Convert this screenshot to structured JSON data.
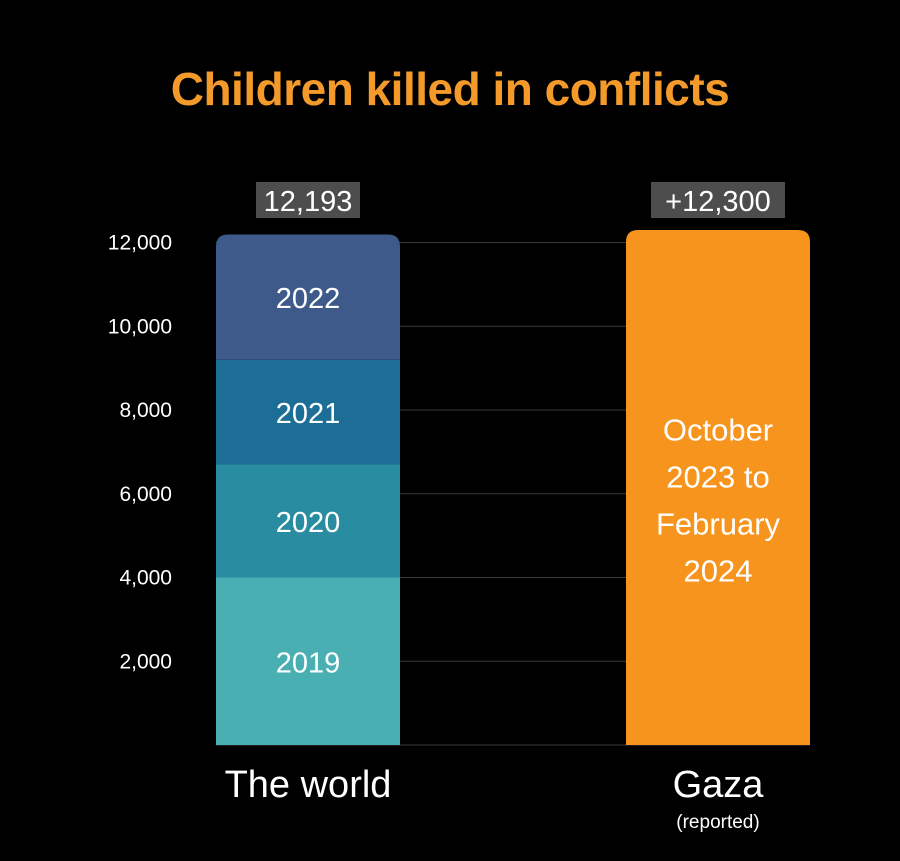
{
  "title": "Children killed in conflicts",
  "colors": {
    "background": "#000000",
    "title": "#F39A2B",
    "gridline": "#3a3a3a",
    "total_label_bg": "#4d4d4d",
    "gaza_bar": "#F7941D",
    "segment_2019": "#4AAFB3",
    "segment_2020": "#2A8CA0",
    "segment_2021": "#1D6E96",
    "segment_2022": "#3E5A8A",
    "text": "#FFFFFF"
  },
  "chart_data": {
    "type": "bar",
    "stacked": true,
    "categories": [
      "The world",
      "Gaza"
    ],
    "category_notes": [
      "",
      "(reported)"
    ],
    "ylim": [
      0,
      12300
    ],
    "yticks": [
      2000,
      4000,
      6000,
      8000,
      10000,
      12000
    ],
    "ytick_labels": [
      "2,000",
      "4,000",
      "6,000",
      "8,000",
      "10,000",
      "12,000"
    ],
    "grid": true,
    "series": [
      {
        "name": "2019",
        "values": [
          4000,
          0
        ]
      },
      {
        "name": "2020",
        "values": [
          2700,
          0
        ]
      },
      {
        "name": "2021",
        "values": [
          2500,
          0
        ]
      },
      {
        "name": "2022",
        "values": [
          2993,
          0
        ]
      },
      {
        "name": "October 2023 to February 2024",
        "values": [
          0,
          12300
        ]
      }
    ],
    "totals": [
      12193,
      12300
    ],
    "total_labels": [
      "12,193",
      "+12,300"
    ],
    "gaza_bar_text": [
      "October",
      "2023 to",
      "February",
      "2024"
    ]
  }
}
